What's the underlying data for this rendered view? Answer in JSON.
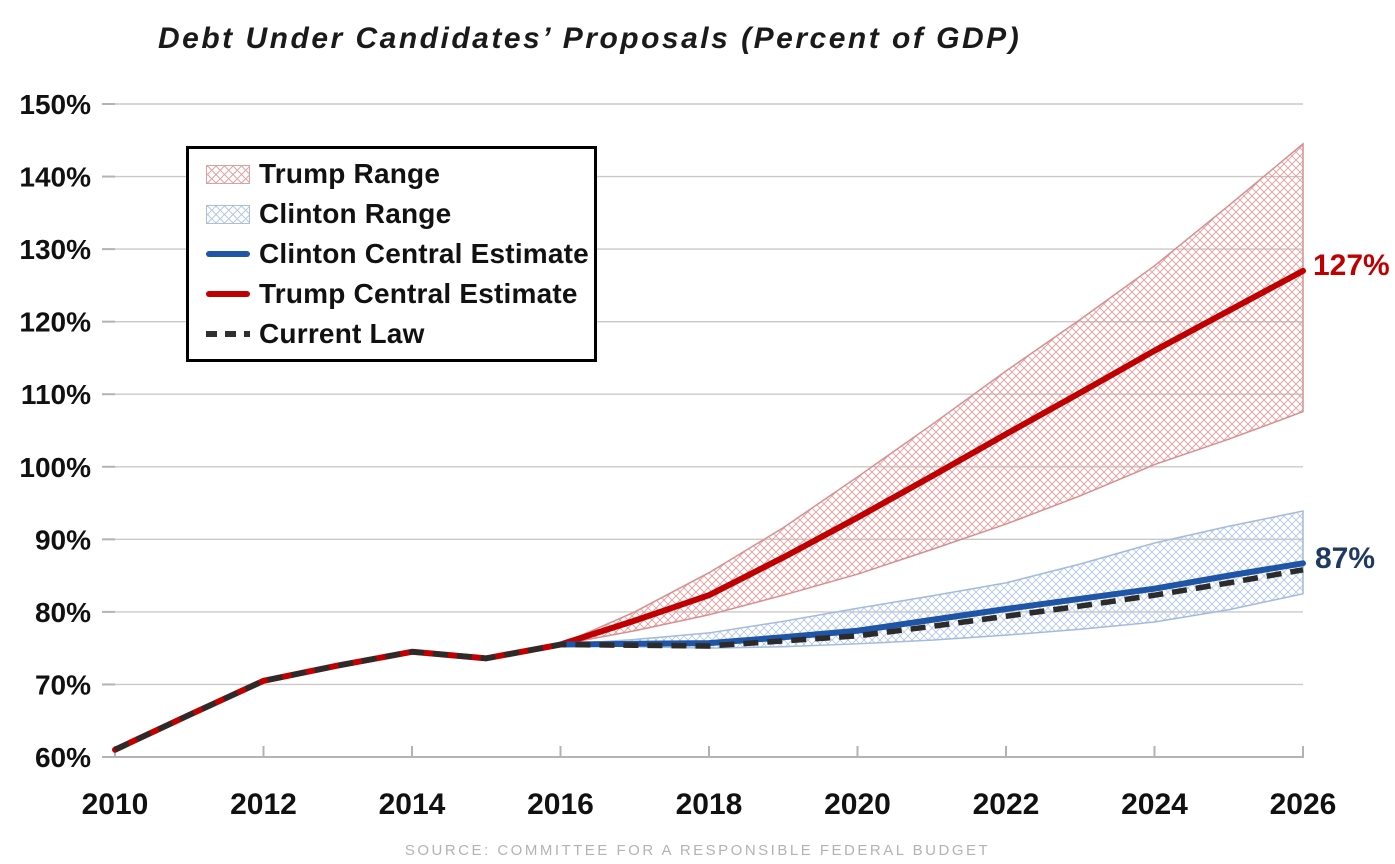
{
  "title": "Debt Under Candidates’ Proposals (Percent of GDP)",
  "source": "SOURCE: COMMITTEE FOR A RESPONSIBLE FEDERAL BUDGET",
  "annotations": [
    {
      "label": "127%",
      "value": 127,
      "color": "#C00000"
    },
    {
      "label": "87%",
      "value": 87,
      "color": "#1F3864"
    }
  ],
  "legend": {
    "items": [
      {
        "label": "Trump Range",
        "swatch": "hatch-red"
      },
      {
        "label": "Clinton Range",
        "swatch": "hatch-blue"
      },
      {
        "label": "Clinton Central Estimate",
        "swatch": "line-blue"
      },
      {
        "label": "Trump Central Estimate",
        "swatch": "line-red"
      },
      {
        "label": "Current Law",
        "swatch": "dash-dark"
      }
    ]
  },
  "colors": {
    "trump_red": "#C00000",
    "clinton_blue": "#1F55A6",
    "current_law": "#2B2B2B",
    "trump_hatch": "#E29C9C",
    "trump_band_edge": "#D98F8F",
    "clinton_hatch": "#B4C6E1",
    "clinton_band_edge": "#A3BBDC",
    "grid": "#C9C9C9",
    "axis": "#B3B3B3",
    "tick_label": "#111111",
    "annotation_red": "#C00000",
    "annotation_blue": "#1F3864"
  },
  "chart_data": {
    "type": "line",
    "title": "Debt Under Candidates’ Proposals (Percent of GDP)",
    "xlabel": "",
    "ylabel": "",
    "xlim": [
      2010,
      2026
    ],
    "ylim": [
      60,
      150
    ],
    "xticks": [
      2010,
      2012,
      2014,
      2016,
      2018,
      2020,
      2022,
      2024,
      2026
    ],
    "yticks": [
      60,
      70,
      80,
      90,
      100,
      110,
      120,
      130,
      140,
      150
    ],
    "ytick_suffix": "%",
    "grid": true,
    "legend_position": "upper-left",
    "series": [
      {
        "name": "Trump Range",
        "type": "band",
        "x_start": 2016,
        "upper": [
          75.5,
          80.0,
          85.4,
          91.6,
          98.6,
          105.8,
          113.2,
          120.3,
          127.7,
          136.0,
          144.5
        ],
        "lower": [
          75.5,
          77.4,
          79.6,
          82.3,
          85.2,
          88.6,
          92.1,
          96.0,
          100.3,
          103.8,
          107.6
        ]
      },
      {
        "name": "Clinton Range",
        "type": "band",
        "x_start": 2016,
        "upper": [
          75.5,
          76.2,
          77.1,
          78.7,
          80.5,
          82.2,
          84.0,
          86.6,
          89.5,
          91.8,
          93.9
        ],
        "lower": [
          75.5,
          75.2,
          75.0,
          75.2,
          75.6,
          76.1,
          76.8,
          77.6,
          78.6,
          80.3,
          82.5
        ]
      },
      {
        "name": "Trump Central Estimate",
        "type": "line",
        "x_start": 2010,
        "values": [
          61.0,
          65.8,
          70.5,
          72.6,
          74.5,
          73.6,
          75.5,
          78.8,
          82.3,
          87.5,
          93.0,
          98.7,
          104.5,
          110.2,
          116.0,
          121.5,
          127.0
        ]
      },
      {
        "name": "Clinton Central Estimate",
        "type": "line",
        "x_start": 2016,
        "values": [
          75.5,
          75.6,
          75.7,
          76.5,
          77.4,
          78.9,
          80.4,
          81.8,
          83.2,
          85.0,
          86.7
        ]
      },
      {
        "name": "Current Law",
        "type": "dashed-line",
        "x_start": 2010,
        "values": [
          61.0,
          65.8,
          70.5,
          72.6,
          74.5,
          73.6,
          75.5,
          75.4,
          75.3,
          76.0,
          76.7,
          78.0,
          79.4,
          80.8,
          82.3,
          84.0,
          85.8
        ]
      }
    ]
  }
}
